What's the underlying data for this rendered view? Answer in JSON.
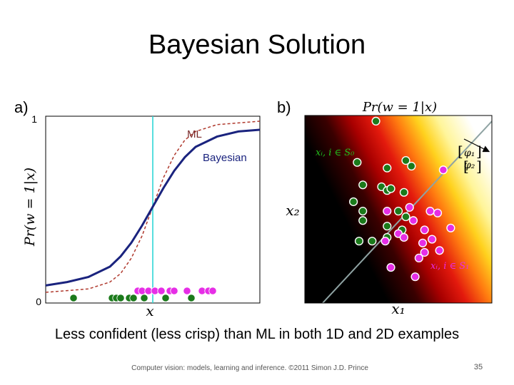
{
  "slide": {
    "title": "Bayesian Solution",
    "caption": "Less confident (less crisp)  than ML in both 1D and 2D examples",
    "footer": "Computer vision: models, learning and inference.  ©2011 Simon J.D. Prince",
    "page_number": "35"
  },
  "chart_data": [
    {
      "type": "line",
      "panel_label": "a)",
      "xlabel": "x",
      "ylabel": "Pr(w = 1|x)",
      "ylim": [
        0,
        1
      ],
      "y_ticks": [
        "1",
        "0"
      ],
      "x_range": [
        -1.0,
        1.0
      ],
      "decision_boundary_x": 0.0,
      "series": [
        {
          "name": "ML",
          "style": "dashed",
          "color": "#b03a2e",
          "x": [
            -1.0,
            -0.8,
            -0.6,
            -0.4,
            -0.3,
            -0.2,
            -0.1,
            0.0,
            0.1,
            0.2,
            0.3,
            0.4,
            0.6,
            0.8,
            1.0
          ],
          "y": [
            0.0,
            0.01,
            0.02,
            0.06,
            0.11,
            0.2,
            0.33,
            0.5,
            0.67,
            0.8,
            0.89,
            0.94,
            0.98,
            0.99,
            1.0
          ]
        },
        {
          "name": "Bayesian",
          "style": "solid",
          "color": "#1a237e",
          "x": [
            -1.0,
            -0.8,
            -0.6,
            -0.4,
            -0.3,
            -0.2,
            -0.1,
            0.0,
            0.1,
            0.2,
            0.3,
            0.4,
            0.6,
            0.8,
            1.0
          ],
          "y": [
            0.04,
            0.06,
            0.09,
            0.15,
            0.21,
            0.29,
            0.39,
            0.5,
            0.61,
            0.71,
            0.79,
            0.85,
            0.91,
            0.94,
            0.95
          ]
        }
      ],
      "points": {
        "class0_color": "#1b7a1b",
        "class1_color": "#e62ee6",
        "class0_x": [
          -0.74,
          -0.38,
          -0.34,
          -0.3,
          -0.22,
          -0.18,
          -0.08,
          0.12,
          0.36
        ],
        "class1_x": [
          -0.14,
          -0.1,
          -0.04,
          0.02,
          0.08,
          0.16,
          0.2,
          0.32,
          0.46,
          0.52,
          0.56
        ]
      }
    },
    {
      "type": "scatter",
      "panel_label": "b)",
      "title": "Pr(w = 1|x)",
      "xlabel": "x₁",
      "ylabel": "x₂",
      "xlim": [
        0,
        10
      ],
      "ylim": [
        0,
        10
      ],
      "background": "heatmap black→red→yellow→white along normal direction",
      "boundary_color": "#8fa3a3",
      "annotations": {
        "class0": "xᵢ, i ∈ S₀",
        "class1": "xᵢ, i ∈ S₁",
        "normal_top": "φ₁",
        "normal_bottom": "φ₂"
      },
      "series": [
        {
          "name": "xᵢ, i ∈ S₀",
          "color": "#1b7a1b",
          "points": [
            [
              3.8,
              9.7
            ],
            [
              2.8,
              7.5
            ],
            [
              4.4,
              7.2
            ],
            [
              5.4,
              7.6
            ],
            [
              5.7,
              7.3
            ],
            [
              3.1,
              6.3
            ],
            [
              4.1,
              6.2
            ],
            [
              4.4,
              6.0
            ],
            [
              4.6,
              6.1
            ],
            [
              5.3,
              5.9
            ],
            [
              2.6,
              5.4
            ],
            [
              3.1,
              4.9
            ],
            [
              5.0,
              4.9
            ],
            [
              3.1,
              4.4
            ],
            [
              4.4,
              4.1
            ],
            [
              5.4,
              4.6
            ],
            [
              2.9,
              3.3
            ],
            [
              3.6,
              3.3
            ],
            [
              4.4,
              3.5
            ],
            [
              5.2,
              3.9
            ]
          ]
        },
        {
          "name": "xᵢ, i ∈ S₁",
          "color": "#e62ee6",
          "points": [
            [
              7.4,
              7.1
            ],
            [
              4.4,
              4.9
            ],
            [
              5.6,
              5.1
            ],
            [
              6.7,
              4.9
            ],
            [
              7.1,
              4.8
            ],
            [
              5.8,
              4.4
            ],
            [
              6.4,
              3.9
            ],
            [
              7.8,
              4.0
            ],
            [
              5.0,
              3.7
            ],
            [
              5.3,
              3.5
            ],
            [
              6.3,
              3.2
            ],
            [
              6.8,
              3.4
            ],
            [
              6.4,
              2.7
            ],
            [
              7.2,
              2.8
            ],
            [
              6.1,
              2.4
            ],
            [
              4.6,
              1.9
            ],
            [
              5.9,
              1.4
            ],
            [
              4.3,
              3.3
            ]
          ]
        }
      ]
    }
  ]
}
